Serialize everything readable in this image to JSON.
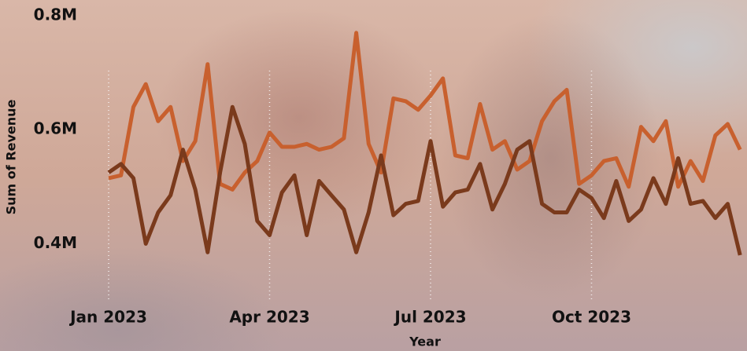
{
  "chart_data": {
    "type": "line",
    "y_label": "Sum of Revenue",
    "x_label": "Year",
    "categories": [
      "Jan 2023",
      null,
      null,
      null,
      null,
      null,
      null,
      null,
      null,
      null,
      null,
      null,
      null,
      "Apr 2023",
      null,
      null,
      null,
      null,
      null,
      null,
      null,
      null,
      null,
      null,
      null,
      null,
      "Jul 2023",
      null,
      null,
      null,
      null,
      null,
      null,
      null,
      null,
      null,
      null,
      null,
      null,
      "Oct 2023",
      null,
      null,
      null,
      null,
      null,
      null,
      null,
      null,
      null,
      null,
      null,
      null
    ],
    "series": [
      {
        "color": "#c8602e",
        "values": [
          515000,
          520000,
          640000,
          680000,
          615000,
          640000,
          545000,
          580000,
          715000,
          505000,
          495000,
          525000,
          545000,
          595000,
          570000,
          570000,
          575000,
          565000,
          570000,
          585000,
          770000,
          575000,
          525000,
          655000,
          650000,
          635000,
          660000,
          690000,
          555000,
          550000,
          645000,
          565000,
          580000,
          530000,
          545000,
          615000,
          650000,
          670000,
          505000,
          520000,
          545000,
          550000,
          500000,
          605000,
          580000,
          615000,
          500000,
          545000,
          510000,
          590000,
          610000,
          565000
        ]
      },
      {
        "color": "#7a3a1c",
        "values": [
          525000,
          540000,
          515000,
          400000,
          455000,
          485000,
          565000,
          495000,
          385000,
          525000,
          640000,
          575000,
          440000,
          415000,
          490000,
          520000,
          415000,
          510000,
          485000,
          460000,
          385000,
          455000,
          555000,
          450000,
          470000,
          475000,
          580000,
          465000,
          490000,
          495000,
          540000,
          460000,
          505000,
          565000,
          580000,
          470000,
          455000,
          455000,
          495000,
          480000,
          445000,
          510000,
          440000,
          460000,
          515000,
          470000,
          550000,
          470000,
          475000,
          445000,
          470000,
          380000
        ]
      }
    ],
    "ylim": [
      300000,
      800000
    ],
    "yticks": [
      {
        "value": 400000,
        "label": "0.4M"
      },
      {
        "value": 600000,
        "label": "0.6M"
      },
      {
        "value": 800000,
        "label": "0.8M"
      }
    ],
    "x_grid": true
  }
}
